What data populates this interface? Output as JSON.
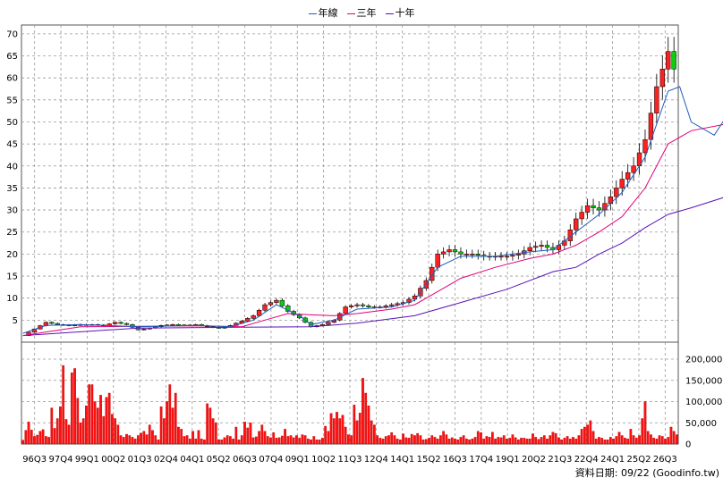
{
  "chart_data": [
    {
      "type": "candlestick",
      "title": "",
      "legend": {
        "position": "top-center",
        "items": [
          {
            "name": "年線",
            "color": "#1f5fbf"
          },
          {
            "name": "三年",
            "color": "#e0007a"
          },
          {
            "name": "十年",
            "color": "#5a13b5"
          }
        ]
      },
      "ylim": [
        0,
        72
      ],
      "yticks": [
        5,
        10,
        15,
        20,
        25,
        30,
        35,
        40,
        45,
        50,
        55,
        60,
        65,
        70
      ],
      "grid": true,
      "up_color": "#ff2020",
      "down_color": "#11cc11",
      "x_tick_labels": [
        "96Q3",
        "97Q4",
        "99Q1",
        "00Q2",
        "01Q3",
        "02Q4",
        "04Q1",
        "05Q2",
        "06Q3",
        "07Q4",
        "09Q1",
        "10Q2",
        "11Q3",
        "12Q4",
        "14Q1",
        "15Q2",
        "16Q3",
        "17Q4",
        "19Q1",
        "20Q2",
        "21Q3",
        "22Q4",
        "24Q1",
        "25Q2",
        "26Q3"
      ],
      "close_points": [
        [
          0,
          1.5
        ],
        [
          4,
          3
        ],
        [
          8,
          4.5
        ],
        [
          12,
          4
        ],
        [
          16,
          3.8
        ],
        [
          20,
          4
        ],
        [
          24,
          4
        ],
        [
          28,
          3.8
        ],
        [
          32,
          4.5
        ],
        [
          36,
          4
        ],
        [
          40,
          2.8
        ],
        [
          44,
          3.2
        ],
        [
          48,
          3.8
        ],
        [
          52,
          4
        ],
        [
          56,
          3.8
        ],
        [
          60,
          4
        ],
        [
          64,
          3.5
        ],
        [
          68,
          3.2
        ],
        [
          72,
          3.8
        ],
        [
          76,
          4.8
        ],
        [
          80,
          6
        ],
        [
          84,
          8.5
        ],
        [
          88,
          9.5
        ],
        [
          92,
          7
        ],
        [
          96,
          5.5
        ],
        [
          100,
          3.5
        ],
        [
          104,
          4
        ],
        [
          108,
          5
        ],
        [
          112,
          8
        ],
        [
          116,
          8.5
        ],
        [
          120,
          8
        ],
        [
          124,
          8
        ],
        [
          128,
          8.5
        ],
        [
          132,
          9
        ],
        [
          136,
          10.5
        ],
        [
          140,
          14
        ],
        [
          144,
          20
        ],
        [
          148,
          21
        ],
        [
          152,
          20
        ],
        [
          156,
          20
        ],
        [
          160,
          19.5
        ],
        [
          164,
          19.5
        ],
        [
          168,
          19.5
        ],
        [
          172,
          20
        ],
        [
          176,
          21.5
        ],
        [
          180,
          22
        ],
        [
          184,
          21
        ],
        [
          188,
          23
        ],
        [
          192,
          28
        ],
        [
          196,
          31
        ],
        [
          200,
          30
        ],
        [
          204,
          33
        ],
        [
          208,
          37
        ],
        [
          212,
          40
        ],
        [
          216,
          46
        ],
        [
          220,
          58
        ],
        [
          224,
          66
        ],
        [
          228,
          58
        ],
        [
          232,
          48
        ],
        [
          236,
          47
        ],
        [
          240,
          50
        ],
        [
          244,
          56
        ]
      ],
      "ma_year": [
        [
          0,
          2
        ],
        [
          8,
          3.8
        ],
        [
          20,
          4
        ],
        [
          40,
          3.5
        ],
        [
          60,
          3.8
        ],
        [
          72,
          3.5
        ],
        [
          80,
          5
        ],
        [
          88,
          8.5
        ],
        [
          96,
          6
        ],
        [
          100,
          4
        ],
        [
          108,
          5
        ],
        [
          116,
          7.5
        ],
        [
          128,
          8
        ],
        [
          136,
          9.5
        ],
        [
          144,
          17
        ],
        [
          152,
          19.5
        ],
        [
          164,
          19.5
        ],
        [
          176,
          20.5
        ],
        [
          184,
          21
        ],
        [
          192,
          25
        ],
        [
          200,
          29
        ],
        [
          208,
          34
        ],
        [
          216,
          42
        ],
        [
          224,
          57
        ],
        [
          228,
          58
        ],
        [
          232,
          50
        ],
        [
          240,
          47
        ],
        [
          244,
          51
        ]
      ],
      "ma_3y": [
        [
          0,
          1.5
        ],
        [
          20,
          3.5
        ],
        [
          40,
          3.6
        ],
        [
          60,
          3.7
        ],
        [
          76,
          3.5
        ],
        [
          84,
          5
        ],
        [
          92,
          6.5
        ],
        [
          100,
          6.2
        ],
        [
          108,
          6
        ],
        [
          116,
          6.5
        ],
        [
          128,
          7.5
        ],
        [
          136,
          8.5
        ],
        [
          144,
          11.5
        ],
        [
          152,
          14.5
        ],
        [
          164,
          17
        ],
        [
          176,
          19
        ],
        [
          184,
          20
        ],
        [
          192,
          22
        ],
        [
          200,
          25
        ],
        [
          208,
          28.5
        ],
        [
          216,
          35
        ],
        [
          224,
          45
        ],
        [
          232,
          48
        ],
        [
          244,
          49.5
        ]
      ],
      "ma_10y": [
        [
          0,
          1.5
        ],
        [
          40,
          3.2
        ],
        [
          76,
          3.4
        ],
        [
          100,
          3.5
        ],
        [
          116,
          4.3
        ],
        [
          136,
          6
        ],
        [
          152,
          9
        ],
        [
          168,
          12
        ],
        [
          184,
          16
        ],
        [
          192,
          17
        ],
        [
          200,
          20
        ],
        [
          208,
          22.5
        ],
        [
          216,
          26
        ],
        [
          224,
          29
        ],
        [
          232,
          30.5
        ],
        [
          244,
          33
        ]
      ],
      "volume": {
        "ylim": [
          0,
          240000
        ],
        "yticks": [
          50000,
          100000,
          150000,
          200000
        ],
        "ytick_labels": [
          "50,000",
          "100,000",
          "150,000",
          "200,000"
        ],
        "values": [
          9000,
          32000,
          52000,
          33000,
          18000,
          21000,
          30000,
          34000,
          18000,
          16000,
          85000,
          37000,
          60000,
          88000,
          185000,
          58000,
          45000,
          168000,
          178000,
          108000,
          50000,
          60000,
          90000,
          140000,
          140000,
          100000,
          85000,
          115000,
          65000,
          110000,
          120000,
          70000,
          60000,
          45000,
          20000,
          16000,
          23000,
          20000,
          16000,
          12000,
          20000,
          26000,
          30000,
          22000,
          45000,
          32000,
          20000,
          10000,
          88000,
          60000,
          100000,
          140000,
          85000,
          120000,
          40000,
          35000,
          18000,
          20000,
          12000,
          30000,
          12000,
          32000,
          12000,
          10000,
          95000,
          85000,
          60000,
          50000,
          10000,
          10000,
          15000,
          20000,
          18000,
          12000,
          40000,
          10000,
          20000,
          52000,
          38000,
          50000,
          15000,
          17000,
          30000,
          45000,
          30000,
          18000,
          15000,
          27000,
          14000,
          15000,
          19000,
          35000,
          18000,
          20000,
          15000,
          20000,
          14000,
          22000,
          20000,
          12000,
          10000,
          18000,
          10000,
          10000,
          14000,
          42000,
          30000,
          72000,
          60000,
          75000,
          60000,
          68000,
          40000,
          22000,
          20000,
          92000,
          55000,
          73000,
          155000,
          120000,
          90000,
          55000,
          45000,
          20000,
          14000,
          12000,
          18000,
          20000,
          27000,
          20000,
          12000,
          10000,
          24000,
          15000,
          14000,
          23000,
          20000,
          25000,
          20000,
          10000,
          11000,
          14000,
          20000,
          16000,
          12000,
          20000,
          30000,
          22000,
          12000,
          15000,
          12000,
          10000,
          16000,
          20000,
          12000,
          10000,
          12000,
          16000,
          30000,
          27000,
          12000,
          18000,
          16000,
          28000,
          12000,
          16000,
          15000,
          20000,
          12000,
          14000,
          22000,
          15000,
          10000,
          14000,
          14000,
          12000,
          12000,
          24000,
          16000,
          11000,
          16000,
          20000,
          12000,
          20000,
          28000,
          25000,
          15000,
          10000,
          14000,
          18000,
          12000,
          16000,
          12000,
          20000,
          35000,
          40000,
          45000,
          55000,
          30000,
          12000,
          16000,
          14000,
          10000,
          10000,
          16000,
          12000,
          18000,
          28000,
          20000,
          14000,
          12000,
          35000,
          20000,
          14000,
          20000,
          60000,
          100000,
          30000,
          22000,
          14000,
          12000,
          20000,
          18000,
          12000,
          16000,
          40000,
          30000,
          22000
        ]
      }
    }
  ],
  "source_note": "資料日期: 09/22  (Goodinfo.tw)"
}
